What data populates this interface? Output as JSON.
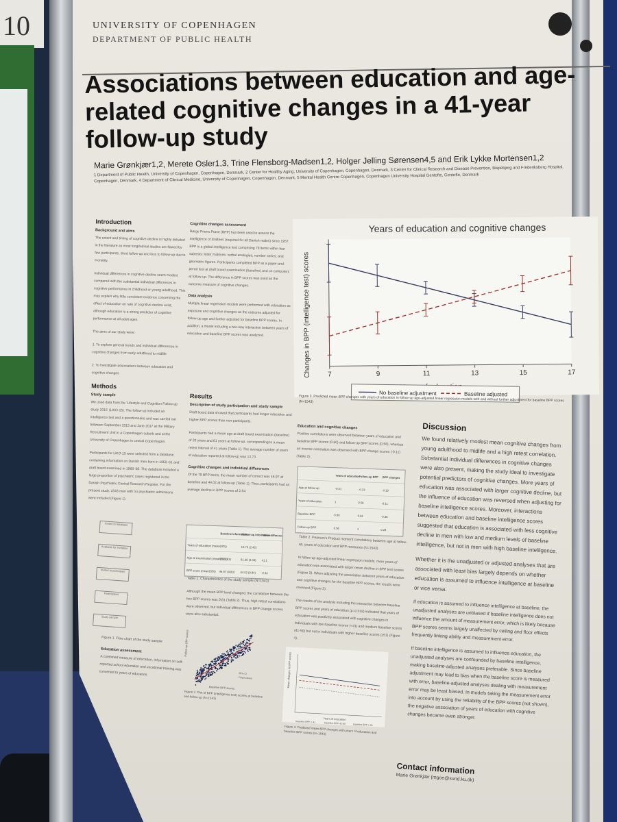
{
  "background": {
    "note_text": "10",
    "carpet_color": "#243564"
  },
  "poster": {
    "university": "UNIVERSITY OF COPENHAGEN",
    "department": "DEPARTMENT OF PUBLIC HEALTH",
    "title": "Associations between education and age-related cognitive changes in a 41-year follow-up study",
    "authors": "Marie Grønkjær1,2, Merete Osler1,3, Trine Flensborg-Madsen1,2, Holger Jelling Sørensen4,5 and Erik Lykke Mortensen1,2",
    "affiliations": "1 Department of Public Health, University of Copenhagen, Copenhagen, Denmark, 2 Center for Healthy Aging, University of Copenhagen, Copenhagen, Denmark, 3 Center for Clinical Research and Disease Prevention, Bispebjerg and Frederiksberg Hospital, Copenhagen, Denmark, 4 Department of Clinical Medicine, University of Copenhagen, Copenhagen, Denmark, 5 Mental Health Centre Copenhagen, Copenhagen University Hospital Gentofte, Gentofte, Denmark",
    "intro": {
      "heading": "Introduction",
      "sub1": "Background and aims",
      "p1": "The extent and timing of cognitive decline is highly debated in the literature as most longitudinal studies are flawed by few participants, short follow-up and loss to follow-up due to mortality.",
      "p2": "Individual differences in cognitive decline seem modest compared with the substantial individual differences in cognitive performance in childhood or young adulthood. This may explain why little consistent evidence concerning the effect of education on rate of cognitive decline exist, although education is a strong predictor of cognitive performance at all adult ages.",
      "p3": "The aims of our study were:",
      "aim1": "1. To explore general trends and individual differences in cognitive changes from early adulthood to midlife",
      "aim2": "2. To investigate associations between education and cognitive changes"
    },
    "methods": {
      "heading": "Methods",
      "sub1": "Study sample",
      "p1": "We used data from the 'Lifestyle and Cognition Follow-up study 2015' (LiKO-15). The follow-up included an intelligence test and a questionnaire and was carried out between September 2015 and June 2017 at the Military Recruitment Unit in a Copenhagen suburb and at the University of Copenhagen in central Copenhagen.",
      "p2": "Participants for LiKO-15 were selected from a database containing information on Danish men born in 1950–61 and draft board examined in 1968–80. The database included a large proportion of psychiatric cases registered in the Danish Psychiatric Central Research Register. For the present study, 1543 men with no psychiatric admissions were included (Figure 1).",
      "fig1_caption": "Figure 1. Flow chart of the study sample",
      "sub2": "Education assessment",
      "p3": "A combined measure of education, information on self-reported school education and vocational training was converted to years of education."
    },
    "cognitive": {
      "sub1": "Cognitive changes assessment",
      "p1": "Børge Priens Prøve (BPP) has been used to assess the intelligence of draftees (required for all Danish males) since 1957. BPP is a global intelligence test comprising 78 items within four subtests: letter matrices; verbal analogies; number series; and geometric figures. Participants completed BPP as a paper-and-pencil test at draft board examination (baseline) and on computers at follow-up. The difference in BPP scores was used as the outcome measure of cognitive changes.",
      "sub2": "Data analysis",
      "p2": "Multiple linear regression models were performed with education as exposure and cognitive changes as the outcome adjusted for follow-up age and further adjusted for baseline BPP scores. In addition, a model including a two-way interaction between years of education and baseline BPP scores was analyzed."
    },
    "results": {
      "heading": "Results",
      "sub1": "Description of study participation and study sample",
      "p1": "Draft board data showed that participants had longer education and higher BPP scores than non-participants.",
      "p2": "Participants had a mean age at draft board examination (baseline) of 20 years and 61 years at follow-up, corresponding to a mean retest interval of 41 years (Table 1). The average number of years of education reported at follow-up was 13.73.",
      "sub2": "Cognitive changes and individual differences",
      "p3": "Of the 78 BPP items, the mean number of correct was 46.97 at baseline and 44.02 at follow-up (Table 1). Thus, participants had an average decline in BPP scores of 2.94.",
      "table1_caption": "Table 1. Characteristics of the study sample (N=1543)",
      "p4": "Although the mean BPP level changed, the correlation between the two BPP scores was 0.81 (Table 2). Thus, high retest correlations were observed, but individual differences in BPP change scores were also substantial.",
      "fig2_caption": "Figure 2. Plot of BPP (intelligence test) scores at baseline and follow-up (N=1543)"
    },
    "education_changes": {
      "sub1": "Education and cognitive changes",
      "p1": "Positive correlations were observed between years of education and baseline BPP scores (0.60) and follow-up BPP scores (0.56), whereas an inverse correlation was observed with BPP change scores (-0.11) (Table 2).",
      "table2_caption": "Table 2. Pearson's Product moment correlations between age at follow-up, years of education and BPP measures (N=1543)",
      "p2": "In follow-up age-adjusted linear regression models, more years of education was associated with larger mean decline in BPP test scores (Figure 3). When adjusting the association between years of education and cognitive changes for the baseline BPP scores, the results were reversed (Figure 3).",
      "p3": "The results of the analysis including the interaction between baseline BPP scores and years of education (p=0.018) indicated that years of education was positively associated with cognitive changes in individuals with low baseline scores (<41) and medium baseline scores (41-50) but not in individuals with higher baseline scores (≥51) (Figure 4).",
      "fig4_caption": "Figure 4. Predicted mean BPP changes with years of education and baseline BPP scores (N=1543)"
    },
    "discussion": {
      "heading": "Discussion",
      "p1": "We found relatively modest mean cognitive changes from young adulthood to midlife and a high retest correlation. Substantial individual differences in cognitive changes were also present, making the study ideal to investigate potential predictors of cognitive changes. More years of education was associated with larger cognitive decline, but the influence of education was reversed when adjusting for baseline intelligence scores. Moreover, interactions between education and baseline intelligence scores suggested that education is associated with less cognitive decline in men with low and medium levels of baseline intelligence, but not in men with high baseline intelligence.",
      "p2": "Whether it is the unadjusted or adjusted analyses that are associated with least bias largely depends on whether education is assumed to influence intelligence at baseline or vice versa.",
      "b1": "If education is assumed to influence intelligence at baseline, the unadjusted analyses are unbiased if baseline intelligence does not influence the amount of measurement error, which is likely because BPP scores seems largely unaffected by ceiling and floor effects frequently linking ability and measurement error.",
      "b2": "If baseline intelligence is assumed to influence education, the unadjusted analyses are confounded by baseline intelligence, making baseline-adjusted analyses preferable. Since baseline adjustment may lead to bias when the baseline score is measured with error, baseline-adjusted analyses dealing with measurement error may be least biased. In models taking the measurement error into account by using the reliability of the BPP scores (not shown), the negative association of years of education with cognitive changes became even stronger."
    },
    "contact": {
      "heading": "Contact information",
      "text": "Marie Grønkjær (mgoe@sund.ku.dk)"
    },
    "flow_boxes": [
      "Invited to database",
      "Available for invitation",
      "Invited to participate",
      "Participated",
      "Study sample"
    ],
    "table1": {
      "cols": [
        "",
        "Baseline information",
        "Follow-up information",
        "Mean difference"
      ],
      "rows": [
        [
          "Years of education (mean(SD))",
          "",
          "13.73 (2.42)",
          ""
        ],
        [
          "Age at examination (mean(SD))",
          "20 (0.83)",
          "61.36 (3.04)",
          "41.1"
        ],
        [
          "BPP score (mean(SD))",
          "46.97 (9.80)",
          "44.02 (9.84)",
          "-2.94"
        ]
      ]
    },
    "table2": {
      "cols": [
        "",
        "Years of education",
        "Follow-up BPP",
        "BPP changes"
      ],
      "rows": [
        [
          "Age at follow-up",
          "-0.01",
          "-0.13",
          "-0.19"
        ],
        [
          "Years of education",
          "1",
          "0.56",
          "-0.11"
        ],
        [
          "Baseline BPP",
          "0.60",
          "0.81",
          "-0.36"
        ],
        [
          "Follow-up BPP",
          "0.56",
          "1",
          "0.23"
        ]
      ]
    },
    "chart_title": "Years of education and cognitive changes",
    "chart_caption": "Figure 3. Predicted mean BPP changes with years of education in follow-up age-adjusted linear regression models with and without further adjustment for baseline BPP scores (N=1543)",
    "legend": {
      "no_adj": "No baseline adjustment",
      "adj": "Baseline adjusted"
    },
    "fig2_labels": {
      "x": "Baseline BPP scores",
      "y": "Follow-up BPP scores",
      "l1": "95% CI",
      "l2": "Fitted values"
    },
    "fig4_labels": {
      "x": "Years of education",
      "y": "Mean changes in BPP scores",
      "l1": "baseline BPP < 41",
      "l2": "baseline BPP 41-50",
      "l3": "baseline BPP ≥ 51"
    }
  },
  "chart_data": {
    "type": "line",
    "title": "Years of education and cognitive changes",
    "xlabel": "Years of education",
    "ylabel": "Changes in BPP (intelligence test) scores",
    "x_ticks": [
      7,
      9,
      11,
      13,
      15,
      17
    ],
    "xlim": [
      7,
      17
    ],
    "x": [
      7,
      9,
      11,
      13,
      15,
      17
    ],
    "series": [
      {
        "name": "No baseline adjustment",
        "style": "solid",
        "color": "#3a3f63",
        "values": [
          0.0,
          -0.8,
          -1.6,
          -2.4,
          -3.2,
          -4.0
        ],
        "ci": [
          [
            -1.2,
            1.2
          ],
          [
            -1.5,
            -0.1
          ],
          [
            -2.0,
            -1.2
          ],
          [
            -2.8,
            -2.0
          ],
          [
            -3.6,
            -2.8
          ],
          [
            -4.8,
            -3.2
          ]
        ]
      },
      {
        "name": "Baseline adjusted",
        "style": "dashed",
        "color": "#a0322c",
        "values": [
          -4.6,
          -3.8,
          -3.0,
          -2.2,
          -1.4,
          -0.6
        ],
        "ci": [
          [
            -5.8,
            -3.4
          ],
          [
            -4.5,
            -3.1
          ],
          [
            -3.4,
            -2.6
          ],
          [
            -2.6,
            -1.8
          ],
          [
            -1.9,
            -0.9
          ],
          [
            -1.5,
            0.3
          ]
        ]
      }
    ],
    "ylim": [
      -6.5,
      1.5
    ],
    "legend": "bottom",
    "grid": false
  }
}
